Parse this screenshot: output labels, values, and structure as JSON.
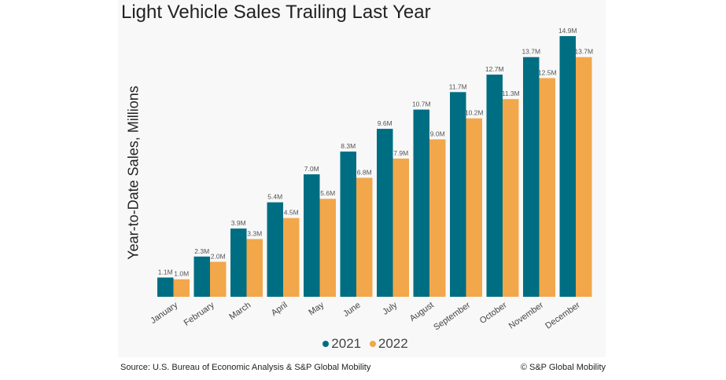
{
  "chart_data": {
    "type": "bar",
    "title": "Light Vehicle Sales Trailing Last Year",
    "xlabel": "",
    "ylabel": "Year-to-Date Sales, Millions",
    "categories": [
      "January",
      "February",
      "March",
      "April",
      "May",
      "June",
      "July",
      "August",
      "September",
      "October",
      "November",
      "December"
    ],
    "series": [
      {
        "name": "2021",
        "color": "#006e82",
        "values": [
          1.1,
          2.3,
          3.9,
          5.4,
          7.0,
          8.3,
          9.6,
          10.7,
          11.7,
          12.7,
          13.7,
          14.9
        ]
      },
      {
        "name": "2022",
        "color": "#f2a74a",
        "values": [
          1.0,
          2.0,
          3.3,
          4.5,
          5.6,
          6.8,
          7.9,
          9.0,
          10.2,
          11.3,
          12.5,
          13.7
        ]
      }
    ],
    "data_label_suffix": "M",
    "ylim": [
      0,
      15
    ],
    "grid": false,
    "legend_position": "bottom"
  },
  "footer": {
    "source": "Source: U.S. Bureau of Economic Analysis & S&P Global Mobility",
    "copyright": "© S&P Global Mobility"
  }
}
